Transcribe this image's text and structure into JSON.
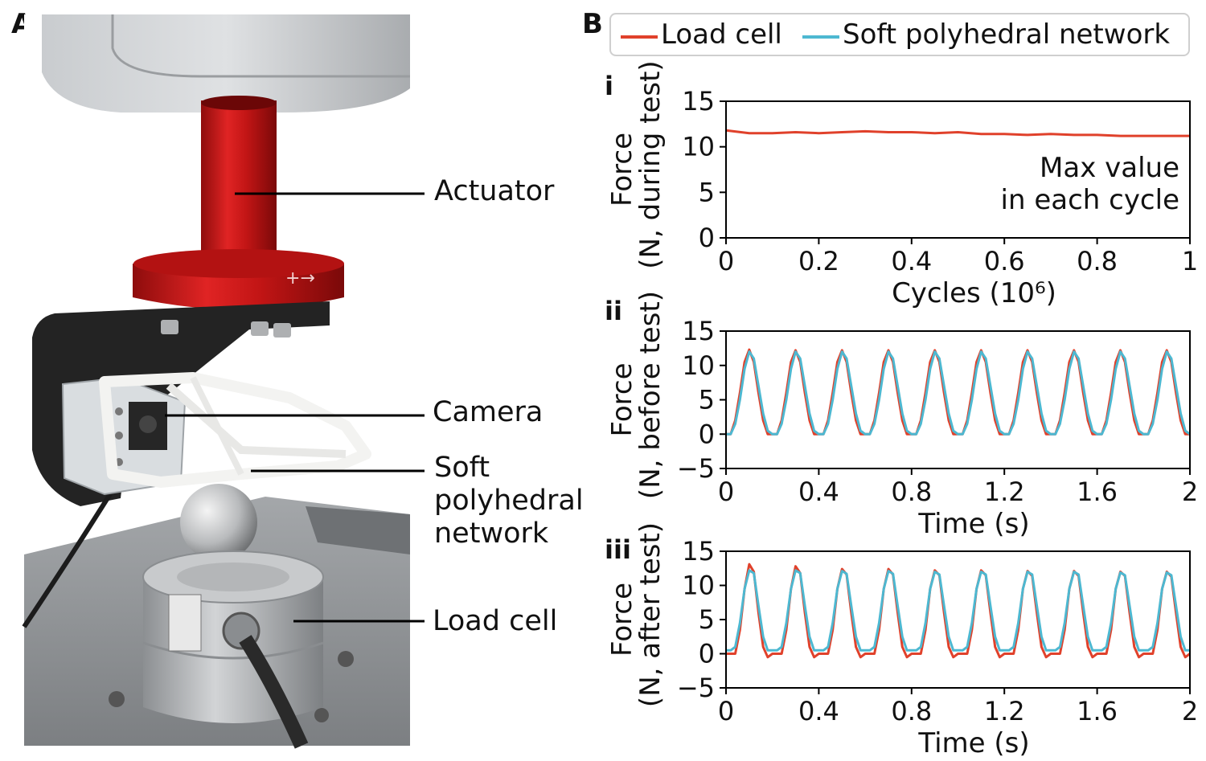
{
  "panels": {
    "a": "A",
    "b": "B"
  },
  "photo": {
    "callouts": {
      "actuator": "Actuator",
      "camera": "Camera",
      "network": "Soft\npolyhedral\nnetwork",
      "load_cell": "Load cell"
    },
    "colors": {
      "actuator_red": "#d21818",
      "housing_gray": "#b9bcbf",
      "bracket_black": "#232323",
      "steel": "#b7b9bb",
      "table": "#8f9295"
    }
  },
  "legend": {
    "series": [
      {
        "name": "Load cell",
        "color": "#e0412b"
      },
      {
        "name": "Soft polyhedral network",
        "color": "#4db8d1"
      }
    ]
  },
  "chart_data": [
    {
      "type": "line",
      "label": "i",
      "xlabel": "Cycles (10⁶)",
      "ylabel_line1": "Force",
      "ylabel_line2": "(N, during test)",
      "xlim": [
        0,
        1
      ],
      "ylim": [
        0,
        15
      ],
      "xticks": [
        0,
        0.2,
        0.4,
        0.6,
        0.8,
        1
      ],
      "xtick_labels": [
        "0",
        "0.2",
        "0.4",
        "0.6",
        "0.8",
        "1"
      ],
      "yticks": [
        0,
        5,
        10,
        15
      ],
      "ytick_labels": [
        "0",
        "5",
        "10",
        "15"
      ],
      "annotation_line1": "Max value",
      "annotation_line2": "in each cycle",
      "series": [
        {
          "name": "Load cell",
          "x": [
            0,
            0.05,
            0.1,
            0.15,
            0.2,
            0.25,
            0.3,
            0.35,
            0.4,
            0.45,
            0.5,
            0.55,
            0.6,
            0.65,
            0.7,
            0.75,
            0.8,
            0.85,
            0.9,
            0.95,
            1
          ],
          "y": [
            11.8,
            11.5,
            11.5,
            11.6,
            11.5,
            11.6,
            11.7,
            11.6,
            11.6,
            11.5,
            11.6,
            11.4,
            11.4,
            11.3,
            11.4,
            11.3,
            11.3,
            11.2,
            11.2,
            11.2,
            11.2
          ]
        }
      ]
    },
    {
      "type": "line",
      "label": "ii",
      "xlabel": "Time (s)",
      "ylabel_line1": "Force",
      "ylabel_line2": "(N, before test)",
      "xlim": [
        0,
        2
      ],
      "ylim": [
        -5,
        15
      ],
      "xticks": [
        0,
        0.4,
        0.8,
        1.2,
        1.6,
        2
      ],
      "xtick_labels": [
        "0",
        "0.4",
        "0.8",
        "1.2",
        "1.6",
        "2"
      ],
      "yticks": [
        -5,
        0,
        5,
        10,
        15
      ],
      "ytick_labels": [
        "−5",
        "0",
        "5",
        "10",
        "15"
      ],
      "series": [
        {
          "name": "Load cell",
          "x": [
            0,
            0.02,
            0.04,
            0.06,
            0.08,
            0.1,
            0.12,
            0.14,
            0.16,
            0.18,
            0.2,
            0.22,
            0.24,
            0.26,
            0.28,
            0.3,
            0.32,
            0.34,
            0.36,
            0.38,
            0.4,
            0.42,
            0.44,
            0.46,
            0.48,
            0.5,
            0.52,
            0.54,
            0.56,
            0.58,
            0.6,
            0.62,
            0.64,
            0.66,
            0.68,
            0.7,
            0.72,
            0.74,
            0.76,
            0.78,
            0.8,
            0.82,
            0.84,
            0.86,
            0.88,
            0.9,
            0.92,
            0.94,
            0.96,
            0.98,
            1.0,
            1.02,
            1.04,
            1.06,
            1.08,
            1.1,
            1.12,
            1.14,
            1.16,
            1.18,
            1.2,
            1.22,
            1.24,
            1.26,
            1.28,
            1.3,
            1.32,
            1.34,
            1.36,
            1.38,
            1.4,
            1.42,
            1.44,
            1.46,
            1.48,
            1.5,
            1.52,
            1.54,
            1.56,
            1.58,
            1.6,
            1.62,
            1.64,
            1.66,
            1.68,
            1.7,
            1.72,
            1.74,
            1.76,
            1.78,
            1.8,
            1.82,
            1.84,
            1.86,
            1.88,
            1.9,
            1.92,
            1.94,
            1.96,
            1.98,
            2.0
          ],
          "y": [
            0,
            0,
            2,
            6,
            10.5,
            12.3,
            10.5,
            6,
            2,
            0,
            0,
            0,
            2,
            6,
            10.5,
            12.2,
            10.5,
            6,
            2,
            0,
            0,
            0,
            2,
            6,
            10.5,
            12.2,
            10.5,
            6,
            2,
            0,
            0,
            0,
            2,
            6,
            10.5,
            12.2,
            10.5,
            6,
            2,
            0,
            0,
            0,
            2,
            6,
            10.5,
            12.2,
            10.5,
            6,
            2,
            0,
            0,
            0,
            2,
            6,
            10.5,
            12.2,
            10.5,
            6,
            2,
            0,
            0,
            0,
            2,
            6,
            10.5,
            12.2,
            10.5,
            6,
            2,
            0,
            0,
            0,
            2,
            6,
            10.5,
            12.2,
            10.5,
            6,
            2,
            0,
            0,
            0,
            2,
            6,
            10.5,
            12.2,
            10.5,
            6,
            2,
            0,
            0,
            0,
            2,
            6,
            10.5,
            12.2,
            10.5,
            6,
            2,
            0,
            0
          ]
        },
        {
          "name": "Soft polyhedral network",
          "x": [
            0,
            0.02,
            0.04,
            0.06,
            0.08,
            0.1,
            0.12,
            0.14,
            0.16,
            0.18,
            0.2,
            0.22,
            0.24,
            0.26,
            0.28,
            0.3,
            0.32,
            0.34,
            0.36,
            0.38,
            0.4,
            0.42,
            0.44,
            0.46,
            0.48,
            0.5,
            0.52,
            0.54,
            0.56,
            0.58,
            0.6,
            0.62,
            0.64,
            0.66,
            0.68,
            0.7,
            0.72,
            0.74,
            0.76,
            0.78,
            0.8,
            0.82,
            0.84,
            0.86,
            0.88,
            0.9,
            0.92,
            0.94,
            0.96,
            0.98,
            1.0,
            1.02,
            1.04,
            1.06,
            1.08,
            1.1,
            1.12,
            1.14,
            1.16,
            1.18,
            1.2,
            1.22,
            1.24,
            1.26,
            1.28,
            1.3,
            1.32,
            1.34,
            1.36,
            1.38,
            1.4,
            1.42,
            1.44,
            1.46,
            1.48,
            1.5,
            1.52,
            1.54,
            1.56,
            1.58,
            1.6,
            1.62,
            1.64,
            1.66,
            1.68,
            1.7,
            1.72,
            1.74,
            1.76,
            1.78,
            1.8,
            1.82,
            1.84,
            1.86,
            1.88,
            1.9,
            1.92,
            1.94,
            1.96,
            1.98,
            2.0
          ],
          "y": [
            0,
            0,
            1.5,
            5,
            9.5,
            12,
            11,
            7,
            3,
            0.5,
            0,
            0,
            1.5,
            5,
            9.5,
            12,
            11,
            7,
            3,
            0.5,
            0,
            0,
            1.5,
            5,
            9.5,
            12,
            11,
            7,
            3,
            0.5,
            0,
            0,
            1.5,
            5,
            9.5,
            12,
            11,
            7,
            3,
            0.5,
            0,
            0,
            1.5,
            5,
            9.5,
            12,
            11,
            7,
            3,
            0.5,
            0,
            0,
            1.5,
            5,
            9.5,
            12,
            11,
            7,
            3,
            0.5,
            0,
            0,
            1.5,
            5,
            9.5,
            12,
            11,
            7,
            3,
            0.5,
            0,
            0,
            1.5,
            5,
            9.5,
            12,
            11,
            7,
            3,
            0.5,
            0,
            0,
            1.5,
            5,
            9.5,
            12,
            11,
            7,
            3,
            0.5,
            0,
            0,
            1.5,
            5,
            9.5,
            12,
            11,
            7,
            3,
            0.5,
            0
          ]
        }
      ]
    },
    {
      "type": "line",
      "label": "iii",
      "xlabel": "Time (s)",
      "ylabel_line1": "Force",
      "ylabel_line2": "(N, after test)",
      "xlim": [
        0,
        2
      ],
      "ylim": [
        -5,
        15
      ],
      "xticks": [
        0,
        0.4,
        0.8,
        1.2,
        1.6,
        2
      ],
      "xtick_labels": [
        "0",
        "0.4",
        "0.8",
        "1.2",
        "1.6",
        "2"
      ],
      "yticks": [
        -5,
        0,
        5,
        10,
        15
      ],
      "ytick_labels": [
        "−5",
        "0",
        "5",
        "10",
        "15"
      ],
      "series": [
        {
          "name": "Load cell",
          "x": [
            0,
            0.02,
            0.04,
            0.06,
            0.08,
            0.1,
            0.12,
            0.14,
            0.16,
            0.18,
            0.2,
            0.22,
            0.24,
            0.26,
            0.28,
            0.3,
            0.32,
            0.34,
            0.36,
            0.38,
            0.4,
            0.42,
            0.44,
            0.46,
            0.48,
            0.5,
            0.52,
            0.54,
            0.56,
            0.58,
            0.6,
            0.62,
            0.64,
            0.66,
            0.68,
            0.7,
            0.72,
            0.74,
            0.76,
            0.78,
            0.8,
            0.82,
            0.84,
            0.86,
            0.88,
            0.9,
            0.92,
            0.94,
            0.96,
            0.98,
            1.0,
            1.02,
            1.04,
            1.06,
            1.08,
            1.1,
            1.12,
            1.14,
            1.16,
            1.18,
            1.2,
            1.22,
            1.24,
            1.26,
            1.28,
            1.3,
            1.32,
            1.34,
            1.36,
            1.38,
            1.4,
            1.42,
            1.44,
            1.46,
            1.48,
            1.5,
            1.52,
            1.54,
            1.56,
            1.58,
            1.6,
            1.62,
            1.64,
            1.66,
            1.68,
            1.7,
            1.72,
            1.74,
            1.76,
            1.78,
            1.8,
            1.82,
            1.84,
            1.86,
            1.88,
            1.9,
            1.92,
            1.94,
            1.96,
            1.98,
            2.0
          ],
          "y": [
            0,
            0,
            0,
            3.5,
            9.5,
            13.1,
            12,
            6,
            1,
            -0.5,
            0,
            0,
            0,
            3.5,
            9.5,
            12.8,
            11.8,
            6,
            1,
            -0.5,
            0,
            0,
            0,
            3.5,
            9.5,
            12.4,
            11.6,
            6,
            1,
            -0.5,
            0,
            0,
            0,
            3.5,
            9.5,
            12.4,
            11.6,
            6,
            1,
            -0.5,
            0,
            0,
            0,
            3.5,
            9.5,
            12.2,
            11.5,
            6,
            1,
            -0.5,
            0,
            0,
            0,
            3.5,
            9.5,
            12.2,
            11.5,
            6,
            1,
            -0.5,
            0,
            0,
            0,
            3.5,
            9.5,
            12.1,
            11.4,
            6,
            1,
            -0.5,
            0,
            0,
            0,
            3.5,
            9.5,
            12.1,
            11.4,
            6,
            1,
            -0.5,
            0,
            0,
            0,
            3.5,
            9.5,
            12.0,
            11.4,
            6,
            1,
            -0.5,
            0,
            0,
            0,
            3.5,
            9.5,
            12.0,
            11.3,
            6,
            1,
            -0.5,
            0
          ]
        },
        {
          "name": "Soft polyhedral network",
          "x": [
            0,
            0.02,
            0.04,
            0.06,
            0.08,
            0.1,
            0.12,
            0.14,
            0.16,
            0.18,
            0.2,
            0.22,
            0.24,
            0.26,
            0.28,
            0.3,
            0.32,
            0.34,
            0.36,
            0.38,
            0.4,
            0.42,
            0.44,
            0.46,
            0.48,
            0.5,
            0.52,
            0.54,
            0.56,
            0.58,
            0.6,
            0.62,
            0.64,
            0.66,
            0.68,
            0.7,
            0.72,
            0.74,
            0.76,
            0.78,
            0.8,
            0.82,
            0.84,
            0.86,
            0.88,
            0.9,
            0.92,
            0.94,
            0.96,
            0.98,
            1.0,
            1.02,
            1.04,
            1.06,
            1.08,
            1.1,
            1.12,
            1.14,
            1.16,
            1.18,
            1.2,
            1.22,
            1.24,
            1.26,
            1.28,
            1.3,
            1.32,
            1.34,
            1.36,
            1.38,
            1.4,
            1.42,
            1.44,
            1.46,
            1.48,
            1.5,
            1.52,
            1.54,
            1.56,
            1.58,
            1.6,
            1.62,
            1.64,
            1.66,
            1.68,
            1.7,
            1.72,
            1.74,
            1.76,
            1.78,
            1.8,
            1.82,
            1.84,
            1.86,
            1.88,
            1.9,
            1.92,
            1.94,
            1.96,
            1.98,
            2.0
          ],
          "y": [
            0.5,
            0.5,
            1,
            4.5,
            9.5,
            12.2,
            11.8,
            7,
            2.5,
            0.5,
            0.5,
            0.5,
            1,
            4.5,
            9.5,
            12.2,
            11.8,
            7,
            2.5,
            0.5,
            0.5,
            0.5,
            1,
            4.5,
            9.5,
            12.1,
            11.7,
            7,
            2.5,
            0.5,
            0.5,
            0.5,
            1,
            4.5,
            9.5,
            12.1,
            11.7,
            7,
            2.5,
            0.5,
            0.5,
            0.5,
            1,
            4.5,
            9.5,
            12.0,
            11.6,
            7,
            2.5,
            0.5,
            0.5,
            0.5,
            1,
            4.5,
            9.5,
            12.0,
            11.6,
            7,
            2.5,
            0.5,
            0.5,
            0.5,
            1,
            4.5,
            9.5,
            12.0,
            11.6,
            7,
            2.5,
            0.5,
            0.5,
            0.5,
            1,
            4.5,
            9.5,
            12.0,
            11.6,
            7,
            2.5,
            0.5,
            0.5,
            0.5,
            1,
            4.5,
            9.5,
            11.9,
            11.5,
            7,
            2.5,
            0.5,
            0.5,
            0.5,
            1,
            4.5,
            9.5,
            11.9,
            11.5,
            7,
            2.5,
            0.5,
            0.5
          ]
        }
      ]
    }
  ]
}
